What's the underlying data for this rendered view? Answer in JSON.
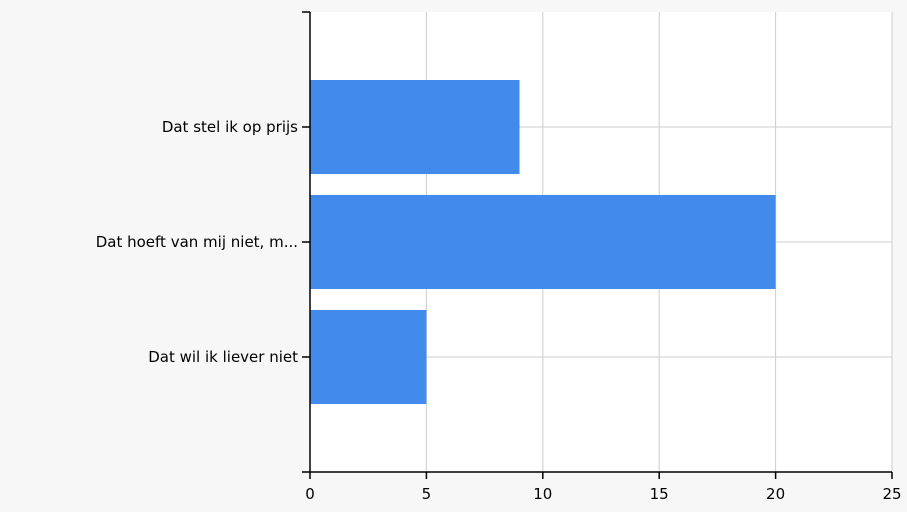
{
  "chart_data": {
    "type": "bar",
    "orientation": "horizontal",
    "categories": [
      "Dat stel ik op prijs",
      "Dat hoeft van mij niet, m...",
      "Dat wil ik liever niet"
    ],
    "values": [
      9,
      20,
      5
    ],
    "xlim": [
      0,
      25
    ],
    "x_ticks": [
      0,
      5,
      10,
      15,
      20,
      25
    ],
    "grid": true,
    "title": "",
    "xlabel": "",
    "ylabel": "",
    "colors": {
      "bar": "#428bed",
      "grid": "#cccccc",
      "axis": "#000000",
      "plot_background": "#ffffff",
      "background": "#f7f7f7"
    }
  }
}
